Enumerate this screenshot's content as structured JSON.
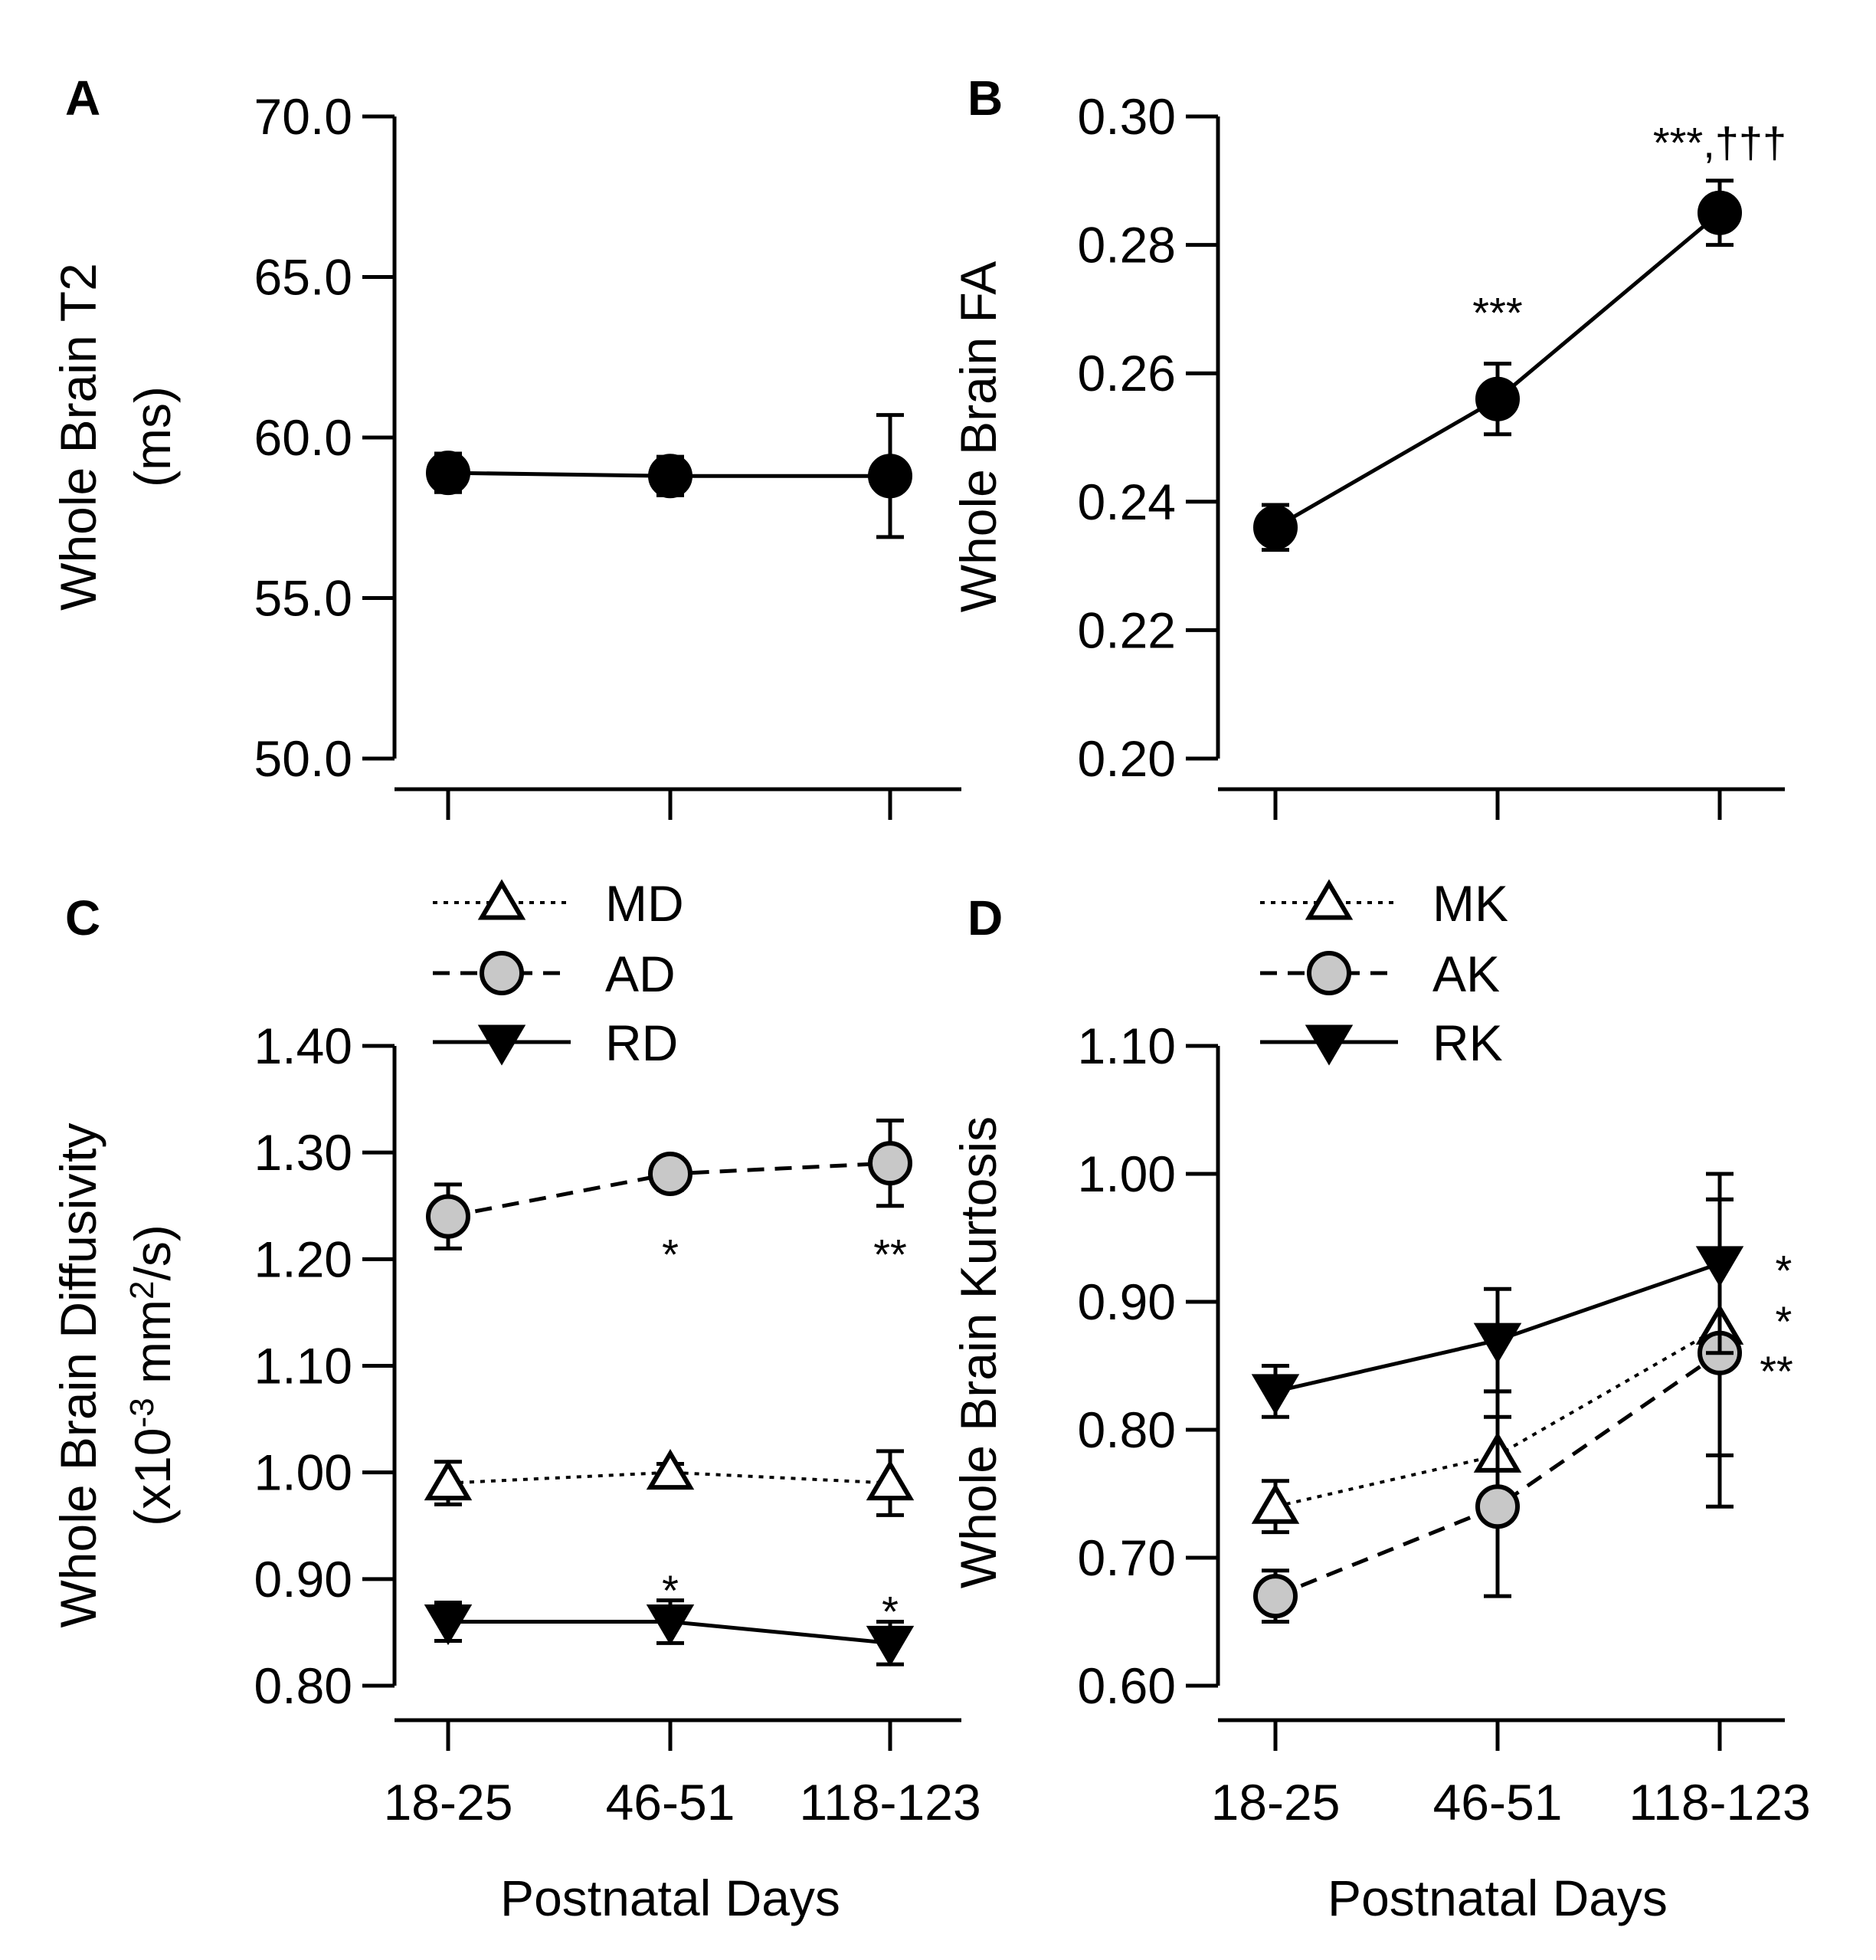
{
  "figure": {
    "x_tick_labels": [
      "18-25",
      "46-51",
      "118-123"
    ]
  },
  "chart_data": [
    {
      "panel": "A",
      "type": "line",
      "categories": [
        "18-25",
        "46-51",
        "118-123"
      ],
      "ylabel_line1": "Whole Brain T2",
      "ylabel_line2": "(ms)",
      "xlabel": "",
      "ylim": [
        50.0,
        70.0
      ],
      "yticks": [
        50.0,
        55.0,
        60.0,
        65.0,
        70.0
      ],
      "ytick_labels": [
        "50.0",
        "55.0",
        "60.0",
        "65.0",
        "70.0"
      ],
      "series": [
        {
          "name": "T2",
          "style": "solid",
          "marker": "circle",
          "fill": "#000000",
          "values": [
            58.9,
            58.8,
            58.8
          ],
          "errors": [
            0.6,
            0.6,
            1.9
          ]
        }
      ],
      "annotations": []
    },
    {
      "panel": "B",
      "type": "line",
      "categories": [
        "18-25",
        "46-51",
        "118-123"
      ],
      "ylabel_line1": "Whole Brain FA",
      "ylabel_line2": "",
      "xlabel": "",
      "ylim": [
        0.2,
        0.3
      ],
      "yticks": [
        0.2,
        0.22,
        0.24,
        0.26,
        0.28,
        0.3
      ],
      "ytick_labels": [
        "0.20",
        "0.22",
        "0.24",
        "0.26",
        "0.28",
        "0.30"
      ],
      "series": [
        {
          "name": "FA",
          "style": "solid",
          "marker": "circle",
          "fill": "#000000",
          "values": [
            0.236,
            0.256,
            0.285
          ],
          "errors": [
            0.0035,
            0.0055,
            0.005
          ]
        }
      ],
      "annotations": [
        {
          "text": "***",
          "category": 1,
          "y": 0.2695
        },
        {
          "text": "***,†††",
          "category": 2,
          "y": 0.296
        }
      ]
    },
    {
      "panel": "C",
      "type": "line",
      "categories": [
        "18-25",
        "46-51",
        "118-123"
      ],
      "ylabel_line1": "Whole Brain Diffusivity",
      "ylabel_line2": "(x10-3 mm2/s)",
      "xlabel": "Postnatal Days",
      "ylim": [
        0.8,
        1.4
      ],
      "yticks": [
        0.8,
        0.9,
        1.0,
        1.1,
        1.2,
        1.3,
        1.4
      ],
      "ytick_labels": [
        "0.80",
        "0.90",
        "1.00",
        "1.10",
        "1.20",
        "1.30",
        "1.40"
      ],
      "series": [
        {
          "name": "MD",
          "style": "dotted",
          "marker": "triangle-up",
          "fill": "#ffffff",
          "values": [
            0.99,
            1.0,
            0.99
          ],
          "errors": [
            0.02,
            0.008,
            0.03
          ]
        },
        {
          "name": "AD",
          "style": "dashed",
          "marker": "circle",
          "fill": "#c8c8c8",
          "values": [
            1.24,
            1.28,
            1.29
          ],
          "errors": [
            0.03,
            0.015,
            0.04
          ]
        },
        {
          "name": "RD",
          "style": "solid",
          "marker": "triangle-down",
          "fill": "#000000",
          "values": [
            0.86,
            0.86,
            0.84
          ],
          "errors": [
            0.018,
            0.02,
            0.02
          ]
        }
      ],
      "annotations": [
        {
          "text": "*",
          "category": 1,
          "y": 1.205
        },
        {
          "text": "**",
          "category": 2,
          "y": 1.205
        },
        {
          "text": "*",
          "category": 1,
          "y": 0.89
        },
        {
          "text": "*",
          "category": 2,
          "y": 0.87
        }
      ]
    },
    {
      "panel": "D",
      "type": "line",
      "categories": [
        "18-25",
        "46-51",
        "118-123"
      ],
      "ylabel_line1": "Whole Brain Kurtosis",
      "ylabel_line2": "",
      "xlabel": "Postnatal Days",
      "ylim": [
        0.6,
        1.1
      ],
      "yticks": [
        0.6,
        0.7,
        0.8,
        0.9,
        1.0,
        1.1
      ],
      "ytick_labels": [
        "0.60",
        "0.70",
        "0.80",
        "0.90",
        "1.00",
        "1.10"
      ],
      "series": [
        {
          "name": "MK",
          "style": "dotted",
          "marker": "triangle-up",
          "fill": "#ffffff",
          "values": [
            0.74,
            0.78,
            0.88
          ],
          "errors": [
            0.02,
            0.05,
            0.1
          ]
        },
        {
          "name": "AK",
          "style": "dashed",
          "marker": "circle",
          "fill": "#c8c8c8",
          "values": [
            0.67,
            0.74,
            0.86
          ],
          "errors": [
            0.02,
            0.07,
            0.12
          ]
        },
        {
          "name": "RK",
          "style": "solid",
          "marker": "triangle-down",
          "fill": "#000000",
          "values": [
            0.83,
            0.87,
            0.93
          ],
          "errors": [
            0.02,
            0.04,
            0.07
          ]
        }
      ],
      "annotations": [
        {
          "text": "*",
          "category": 2.25,
          "y": 0.925,
          "anchor": "start"
        },
        {
          "text": "*",
          "category": 2.25,
          "y": 0.885,
          "anchor": "start"
        },
        {
          "text": "**",
          "category": 2.18,
          "y": 0.846,
          "anchor": "start"
        }
      ]
    }
  ]
}
